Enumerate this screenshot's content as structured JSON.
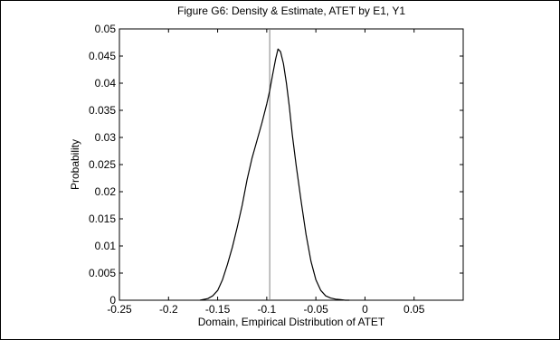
{
  "chart_data": {
    "type": "line",
    "title": "Figure G6: Density & Estimate, ATET by E1, Y1",
    "xlabel": "Domain, Empirical Distribution of ATET",
    "ylabel": "Probability",
    "xlim": [
      -0.25,
      0.1
    ],
    "ylim": [
      0,
      0.05
    ],
    "grid": false,
    "xticks": [
      "-0.25",
      "-0.2",
      "-0.15",
      "-0.1",
      "-0.05",
      "0",
      "0.05"
    ],
    "yticks": [
      "0",
      "0.005",
      "0.01",
      "0.015",
      "0.02",
      "0.025",
      "0.03",
      "0.035",
      "0.04",
      "0.045",
      "0.05"
    ],
    "series": [
      {
        "x": [
          -0.168,
          -0.16,
          -0.155,
          -0.15,
          -0.145,
          -0.14,
          -0.135,
          -0.13,
          -0.125,
          -0.12,
          -0.115,
          -0.11,
          -0.105,
          -0.1,
          -0.097,
          -0.094,
          -0.091,
          -0.0885,
          -0.086,
          -0.083,
          -0.08,
          -0.077,
          -0.074,
          -0.07,
          -0.065,
          -0.06,
          -0.055,
          -0.05,
          -0.045,
          -0.04,
          -0.035,
          -0.03,
          -0.025,
          -0.02,
          -0.016
        ],
        "y": [
          0.0,
          0.0003,
          0.0008,
          0.0018,
          0.0038,
          0.0066,
          0.0098,
          0.0135,
          0.0175,
          0.0222,
          0.0262,
          0.0294,
          0.0326,
          0.0362,
          0.0386,
          0.0416,
          0.0444,
          0.0463,
          0.0458,
          0.0436,
          0.04,
          0.0357,
          0.0305,
          0.0248,
          0.0182,
          0.0121,
          0.0072,
          0.0038,
          0.0018,
          0.0008,
          0.0004,
          0.0002,
          0.0001,
          0.0,
          0.0
        ],
        "color": "#000000"
      }
    ],
    "vline": {
      "x": -0.097,
      "color": "#808080"
    }
  }
}
